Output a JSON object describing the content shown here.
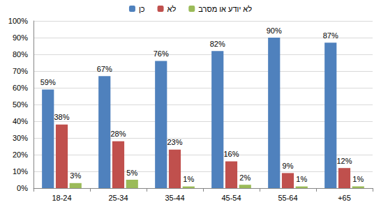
{
  "chart_data": {
    "type": "bar",
    "categories": [
      "18-24",
      "25-34",
      "35-44",
      "45-54",
      "55-64",
      "+65"
    ],
    "series": [
      {
        "name": "כן",
        "color": "#4f81bd",
        "values": [
          59,
          67,
          76,
          82,
          90,
          87
        ],
        "value_labels": [
          "59%",
          "67%",
          "76%",
          "82%",
          "90%",
          "87%"
        ]
      },
      {
        "name": "לא",
        "color": "#c0504d",
        "values": [
          38,
          28,
          23,
          16,
          9,
          12
        ],
        "value_labels": [
          "38%",
          "28%",
          "23%",
          "16%",
          "9%",
          "12%"
        ]
      },
      {
        "name": "לא יודע או מסרב",
        "color": "#9bbb59",
        "values": [
          3,
          5,
          1,
          2,
          1,
          1
        ],
        "value_labels": [
          "3%",
          "5%",
          "1%",
          "2%",
          "1%",
          "1%"
        ]
      }
    ],
    "ylim": [
      0,
      100
    ],
    "yticks": [
      {
        "value": 0,
        "label": "0%"
      },
      {
        "value": 10,
        "label": "10%"
      },
      {
        "value": 20,
        "label": "20%"
      },
      {
        "value": 30,
        "label": "30%"
      },
      {
        "value": 40,
        "label": "40%"
      },
      {
        "value": 50,
        "label": "50%"
      },
      {
        "value": 60,
        "label": "60%"
      },
      {
        "value": 70,
        "label": "70%"
      },
      {
        "value": 80,
        "label": "80%"
      },
      {
        "value": 90,
        "label": "90%"
      },
      {
        "value": 100,
        "label": "100%"
      }
    ],
    "grid": true,
    "legend": "top",
    "data_labels": true
  }
}
